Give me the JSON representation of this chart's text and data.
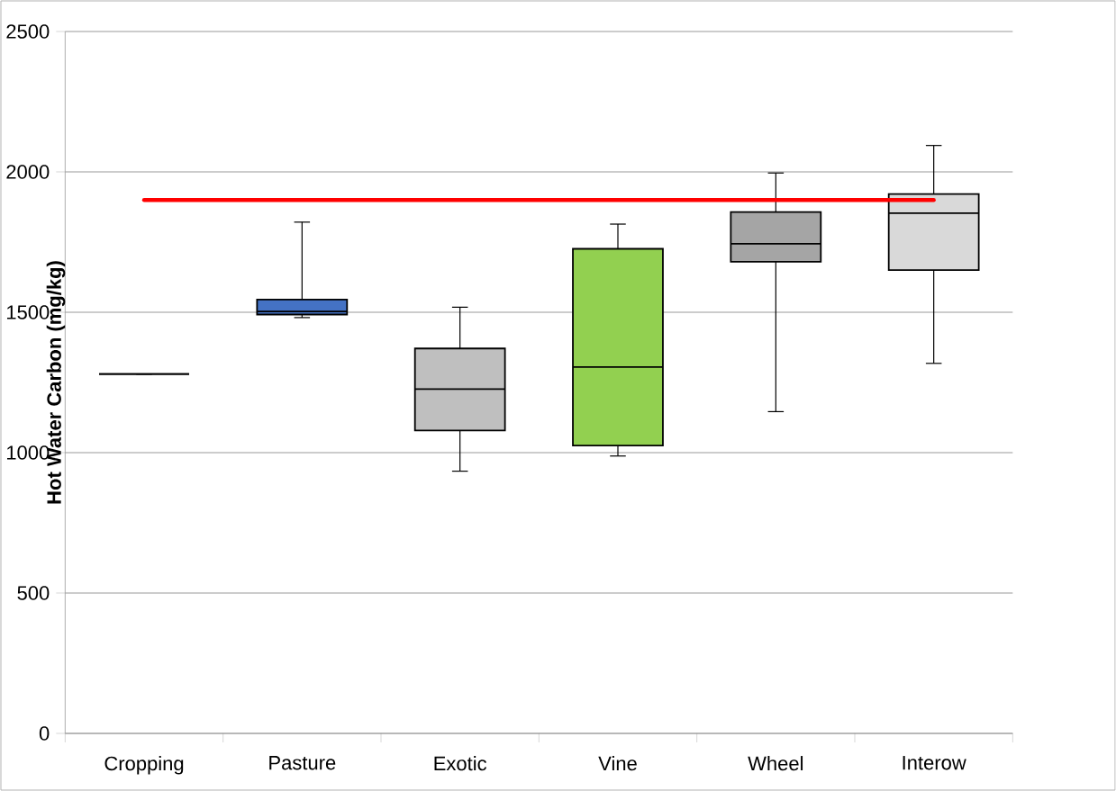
{
  "chart_data": {
    "type": "box",
    "ylabel": "Hot Water Carbon (mg/kg)",
    "categories": [
      "Cropping",
      "Pasture",
      "Exotic",
      "Vine",
      "Wheel",
      "Interow"
    ],
    "boxes": [
      {
        "low": 1280,
        "q1": 1280,
        "median": 1280,
        "q3": 1280,
        "high": 1280
      },
      {
        "low": 1481,
        "q1": 1492,
        "median": 1503,
        "q3": 1545,
        "high": 1821
      },
      {
        "low": 934,
        "q1": 1079,
        "median": 1226,
        "q3": 1371,
        "high": 1518
      },
      {
        "low": 988,
        "q1": 1025,
        "median": 1305,
        "q3": 1726,
        "high": 1814
      },
      {
        "low": 1146,
        "q1": 1680,
        "median": 1744,
        "q3": 1857,
        "high": 1996
      },
      {
        "low": 1318,
        "q1": 1650,
        "median": 1853,
        "q3": 1921,
        "high": 2094
      }
    ],
    "colors": [
      "#000000",
      "#4472c4",
      "#bfbfbf",
      "#92d050",
      "#a5a5a5",
      "#d9d9d9"
    ],
    "ylim": [
      0,
      2500
    ],
    "yticks": [
      0,
      500,
      1000,
      1500,
      2000,
      2500
    ],
    "grid": "y",
    "ref_lines": [
      {
        "axis": "y",
        "value": 1900,
        "color": "#ff0000"
      }
    ]
  }
}
